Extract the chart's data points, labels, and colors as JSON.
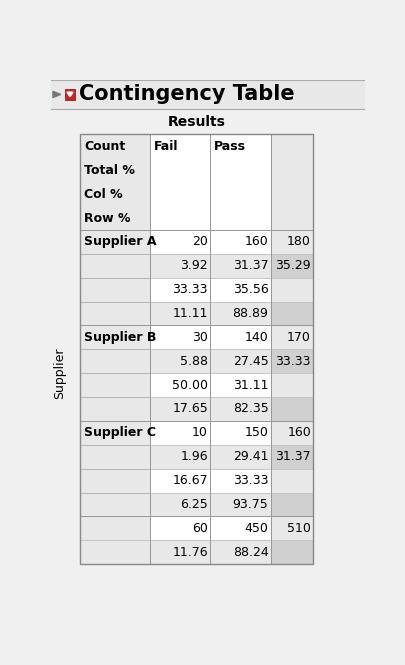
{
  "title": "Contingency Table",
  "subtitle": "Results",
  "y_axis_label": "Supplier",
  "header_labels": [
    "Count\nTotal %\nCol %\nRow %",
    "Fail",
    "Pass",
    ""
  ],
  "rows": [
    {
      "label": "Supplier A",
      "data": [
        [
          "20",
          "160",
          "180"
        ],
        [
          "3.92",
          "31.37",
          "35.29"
        ],
        [
          "33.33",
          "35.56",
          ""
        ],
        [
          "11.11",
          "88.89",
          ""
        ]
      ]
    },
    {
      "label": "Supplier B",
      "data": [
        [
          "30",
          "140",
          "170"
        ],
        [
          "5.88",
          "27.45",
          "33.33"
        ],
        [
          "50.00",
          "31.11",
          ""
        ],
        [
          "17.65",
          "82.35",
          ""
        ]
      ]
    },
    {
      "label": "Supplier C",
      "data": [
        [
          "10",
          "150",
          "160"
        ],
        [
          "1.96",
          "29.41",
          "31.37"
        ],
        [
          "16.67",
          "33.33",
          ""
        ],
        [
          "6.25",
          "93.75",
          ""
        ]
      ]
    }
  ],
  "totals": [
    [
      "60",
      "450",
      "510"
    ],
    [
      "11.76",
      "88.24",
      ""
    ]
  ],
  "bg_label": "#e8e8e8",
  "bg_white": "#ffffff",
  "bg_alt": "#e8e8e8",
  "bg_total_white": "#ffffff",
  "bg_total_gray": "#d0d0d0",
  "bg_page": "#f0f0f0",
  "text_color": "#000000",
  "border_color": "#aaaaaa",
  "title_color": "#000000",
  "title_fontsize": 15,
  "subtitle_fontsize": 10,
  "cell_fontsize": 9,
  "header_label_fontsize": 9,
  "col_header_fontsize": 9
}
